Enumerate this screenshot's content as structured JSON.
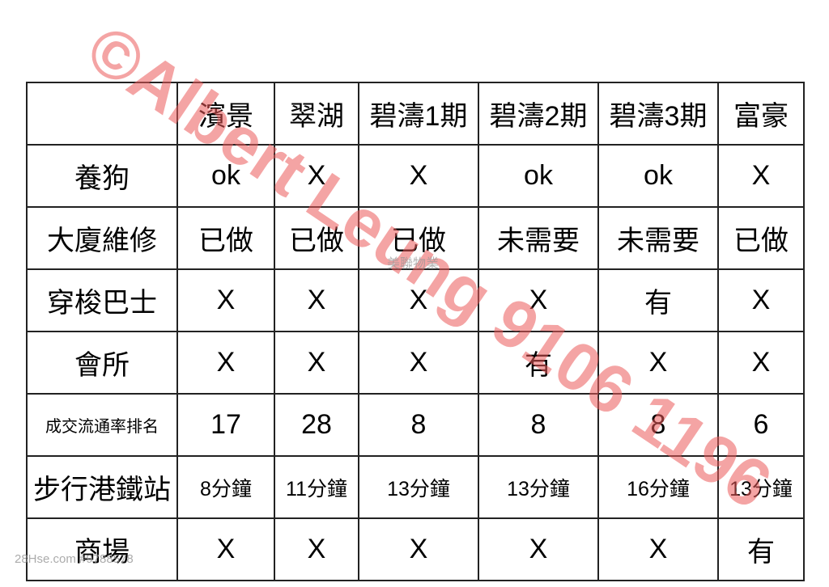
{
  "table": {
    "columns": [
      "濱景",
      "翠湖",
      "碧濤1期",
      "碧濤2期",
      "碧濤3期",
      "富豪"
    ],
    "rows": [
      {
        "label": "養狗",
        "cells": [
          "ok",
          "X",
          "X",
          "ok",
          "ok",
          "X"
        ]
      },
      {
        "label": "大廈維修",
        "cells": [
          "已做",
          "已做",
          "已做",
          "未需要",
          "未需要",
          "已做"
        ]
      },
      {
        "label": "穿梭巴士",
        "cells": [
          "X",
          "X",
          "X",
          "X",
          "有",
          "X"
        ]
      },
      {
        "label": "會所",
        "cells": [
          "X",
          "X",
          "X",
          "有",
          "X",
          "X"
        ]
      },
      {
        "label": "成交流通率排名",
        "cells": [
          17,
          28,
          8,
          8,
          8,
          6
        ]
      },
      {
        "label": "步行港鐵站",
        "cells": [
          "8分鐘",
          "11分鐘",
          "13分鐘",
          "13分鐘",
          "16分鐘",
          "13分鐘"
        ]
      },
      {
        "label": "商場",
        "cells": [
          "X",
          "X",
          "X",
          "X",
          "X",
          "有"
        ]
      }
    ]
  },
  "watermarks": {
    "main": "©Albert Leung 9106 1196",
    "agency": "美聯物業",
    "site": "28Hse.com #9788578"
  }
}
